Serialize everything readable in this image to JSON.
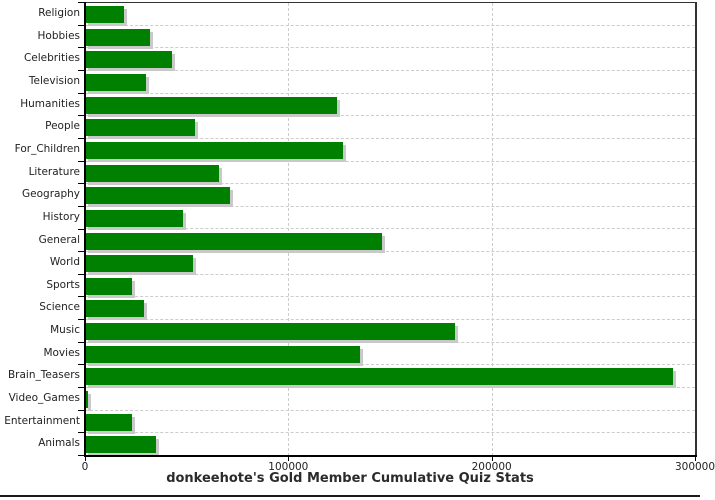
{
  "chart": {
    "colors": {
      "bar": "#008000",
      "bar_shadow": "#c9c9c9",
      "grid": "#cccccc",
      "axis": "#000000",
      "frame": "#333333",
      "text": "#222222"
    }
  },
  "chart_data": {
    "type": "bar",
    "orientation": "horizontal",
    "title": "donkeehote's Gold Member Cumulative Quiz Stats",
    "categories": [
      "Religion",
      "Hobbies",
      "Celebrities",
      "Television",
      "Humanities",
      "People",
      "For_Children",
      "Literature",
      "Geography",
      "History",
      "General",
      "World",
      "Sports",
      "Science",
      "Music",
      "Movies",
      "Brain_Teasers",
      "Video_Games",
      "Entertainment",
      "Animals"
    ],
    "values": [
      19000,
      32000,
      43000,
      30000,
      124000,
      54000,
      127000,
      66000,
      71500,
      48000,
      146000,
      53000,
      23000,
      29000,
      182000,
      135000,
      289000,
      1500,
      23000,
      35000
    ],
    "xlabel": "",
    "ylabel": "",
    "xlim": [
      0,
      300000
    ],
    "x_ticks": [
      0,
      100000,
      200000,
      300000
    ],
    "x_tick_labels": [
      "0",
      "100000",
      "200000",
      "300000"
    ],
    "grid": "dashed",
    "legend": "none"
  }
}
